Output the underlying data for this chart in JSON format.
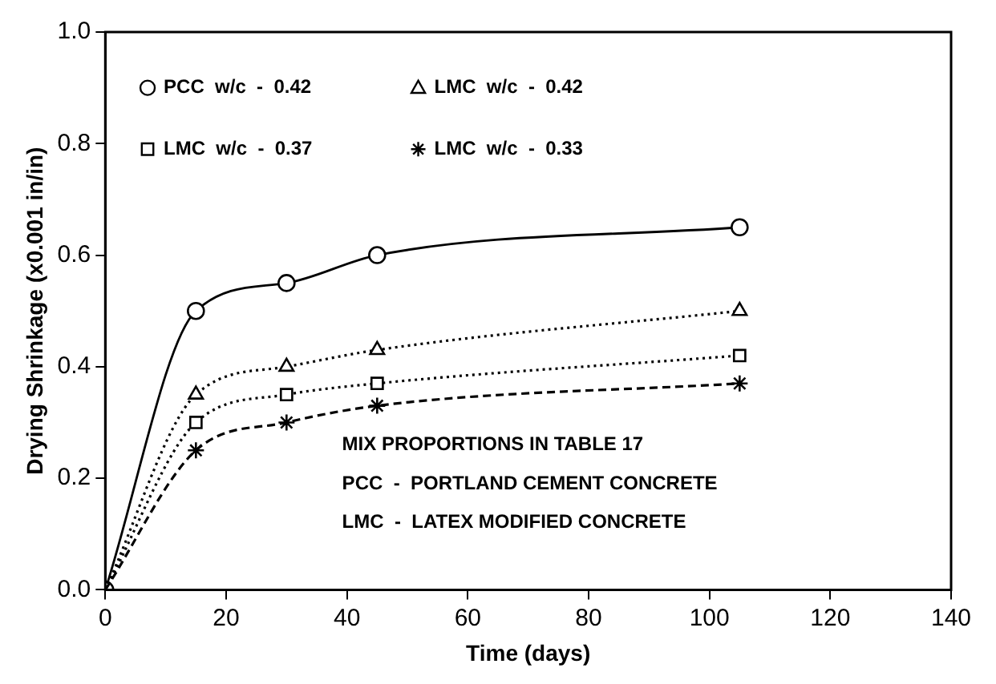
{
  "chart_data": {
    "type": "line",
    "xlabel": "Time (days)",
    "ylabel": "Drying Shrinkage (x0.001 in/in)",
    "x": [
      0,
      15,
      30,
      45,
      105
    ],
    "series": [
      {
        "name": "PCC  w/c  -  0.42",
        "color": "#000000",
        "marker": "circle",
        "line_style": "solid",
        "values": [
          0,
          0.5,
          0.55,
          0.6,
          0.65
        ]
      },
      {
        "name": "LMC  w/c  -  0.42",
        "color": "#000000",
        "marker": "triangle",
        "line_style": "dotted",
        "values": [
          0,
          0.35,
          0.4,
          0.43,
          0.5
        ]
      },
      {
        "name": "LMC  w/c  -  0.37",
        "color": "#000000",
        "marker": "square",
        "line_style": "dotted",
        "values": [
          0,
          0.3,
          0.35,
          0.37,
          0.42
        ]
      },
      {
        "name": "LMC  w/c  -  0.33",
        "color": "#000000",
        "marker": "cross",
        "line_style": "dashed",
        "values": [
          0,
          0.25,
          0.3,
          0.33,
          0.37
        ]
      }
    ],
    "xlim": [
      0,
      140
    ],
    "xticks": [
      0,
      20,
      40,
      60,
      80,
      100,
      120,
      140
    ],
    "ylim": [
      0,
      1
    ],
    "yticks": [
      {
        "value": 0,
        "label": "0.0"
      },
      0.2,
      0.4,
      0.6,
      0.8,
      {
        "value": 1,
        "label": "1.0"
      }
    ],
    "grid": false,
    "legend": "top left",
    "annotations": [
      "MIX PROPORTIONS IN TABLE 17",
      "PCC  -  PORTLAND CEMENT CONCRETE",
      "LMC  -  LATEX MODIFIED CONCRETE"
    ]
  }
}
